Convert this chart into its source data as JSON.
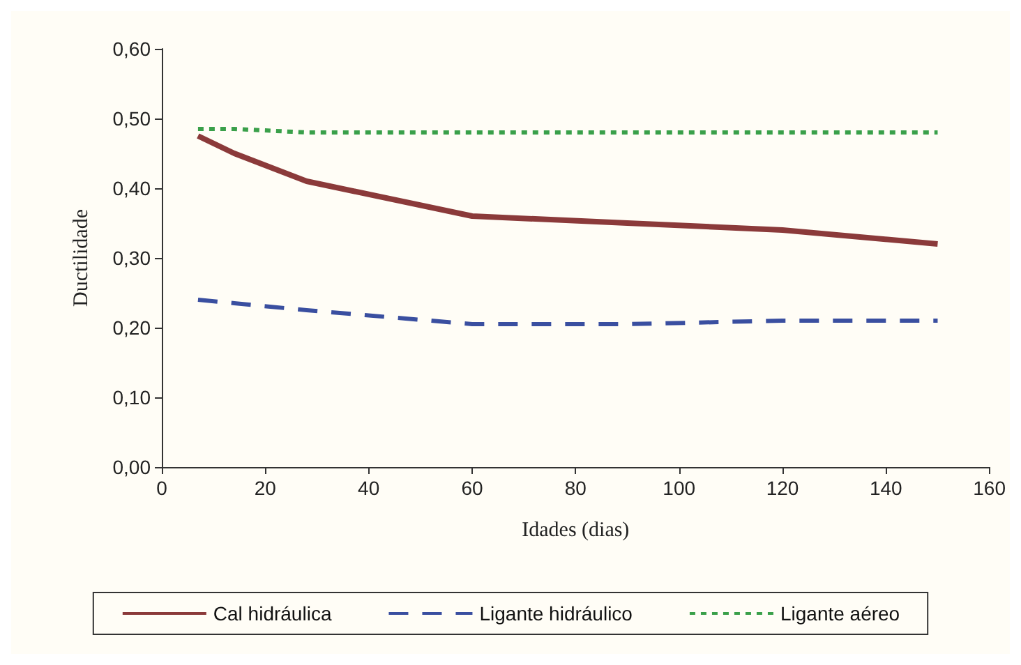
{
  "chart_data": {
    "type": "line",
    "xlabel": "Idades (dias)",
    "ylabel": "Ductilidade",
    "x": [
      7,
      14,
      28,
      60,
      90,
      120,
      150
    ],
    "series": [
      {
        "name": "Cal hidráulica",
        "color": "#8b3a3a",
        "line_style": "solid",
        "values": [
          0.475,
          0.45,
          0.41,
          0.36,
          0.35,
          0.34,
          0.32
        ]
      },
      {
        "name": "Ligante hidráulico",
        "color": "#3a4fa0",
        "line_style": "dashed",
        "values": [
          0.24,
          0.235,
          0.225,
          0.205,
          0.205,
          0.21,
          0.21
        ]
      },
      {
        "name": "Ligante aéreo",
        "color": "#3aa04a",
        "line_style": "dotted",
        "values": [
          0.485,
          0.485,
          0.48,
          0.48,
          0.48,
          0.48,
          0.48
        ]
      }
    ],
    "xlim": [
      0,
      160
    ],
    "xticks": [
      0,
      20,
      40,
      60,
      80,
      100,
      120,
      140,
      160
    ],
    "ylim": [
      0,
      0.6
    ],
    "yticks": [
      {
        "value": 0,
        "label": "0,00"
      },
      {
        "value": 0.1,
        "label": "0,10"
      },
      {
        "value": 0.2,
        "label": "0,20"
      },
      {
        "value": 0.3,
        "label": "0,30"
      },
      {
        "value": 0.4,
        "label": "0,40"
      },
      {
        "value": 0.5,
        "label": "0,50"
      },
      {
        "value": 0.6,
        "label": "0,60"
      }
    ],
    "grid": false,
    "legend": "bottom",
    "marker": "none"
  }
}
